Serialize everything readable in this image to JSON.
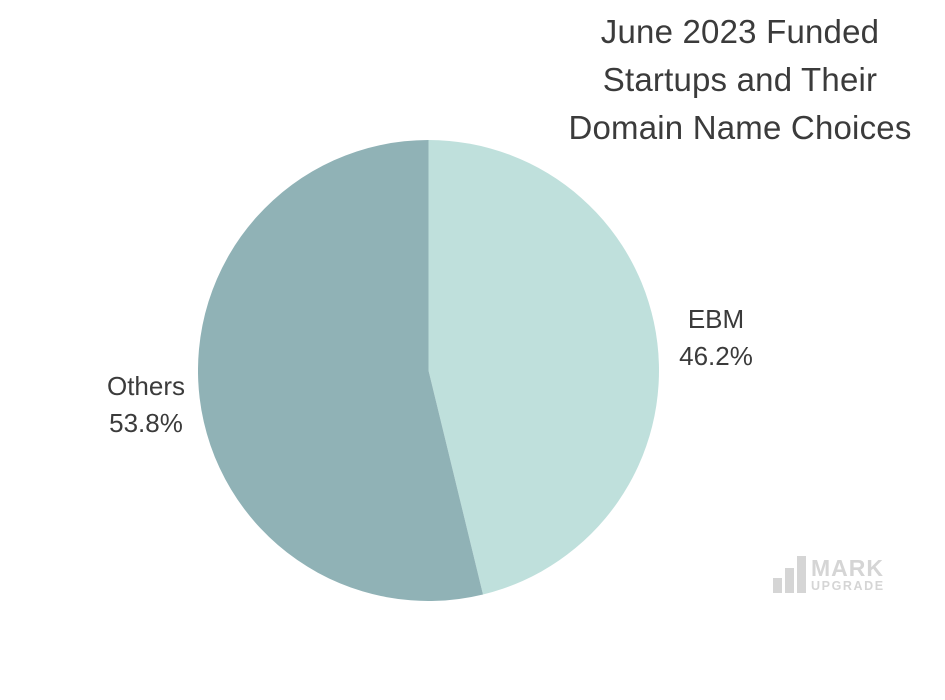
{
  "title": {
    "lines": [
      "June 2023 Funded",
      "Startups and Their",
      "Domain Name Choices"
    ],
    "full": "June 2023 Funded Startups and Their Domain Name Choices",
    "color": "#3b3b3b"
  },
  "chart_data": {
    "type": "pie",
    "title": "June 2023 Funded Startups and Their Domain Name Choices",
    "start_angle_deg": 0,
    "direction": "clockwise",
    "legend_position": "none",
    "labels_position": "outside",
    "slices": [
      {
        "label": "EBM",
        "value": 46.2,
        "value_label": "46.2%",
        "color": "#bfe0dc"
      },
      {
        "label": "Others",
        "value": 53.8,
        "value_label": "53.8%",
        "color": "#90b2b6"
      }
    ]
  },
  "watermark": {
    "brand_top": "MARK",
    "brand_bottom": "UPGRADE",
    "icon": "bar-chart-icon",
    "color": "#d5d5d5"
  }
}
